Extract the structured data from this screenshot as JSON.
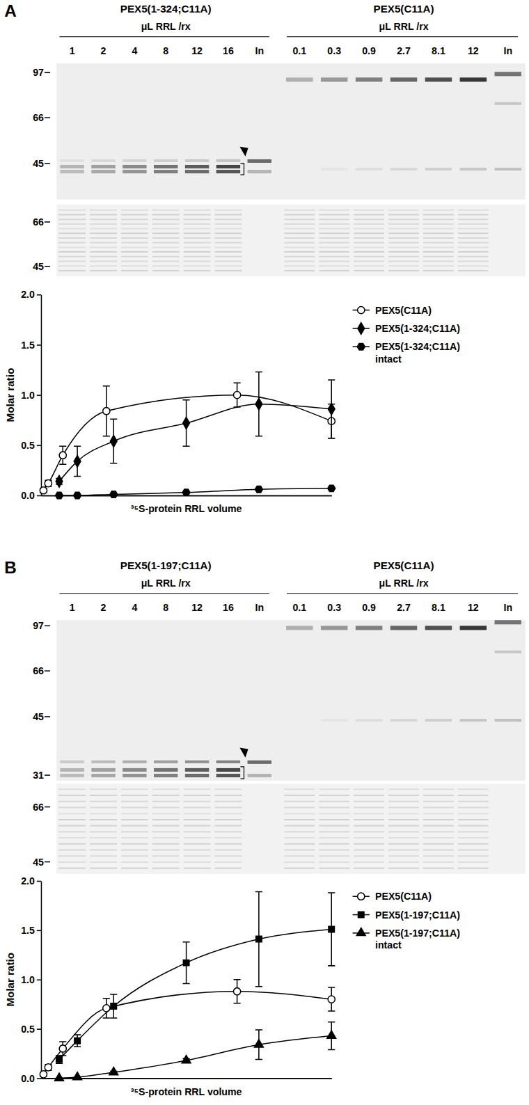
{
  "figure": {
    "panels": [
      {
        "label": "A",
        "gels": [
          {
            "title": "PEX5(1-324;C11A)",
            "subtitle": "μL RRL /rx",
            "lanes": [
              "1",
              "2",
              "4",
              "8",
              "12",
              "16",
              "In"
            ]
          },
          {
            "title": "PEX5(C11A)",
            "subtitle": "μL RRL /rx",
            "lanes": [
              "0.1",
              "0.3",
              "0.9",
              "2.7",
              "8.1",
              "12",
              "In"
            ]
          }
        ],
        "markers": [
          97,
          66,
          45
        ],
        "stain_markers": [
          66,
          45
        ]
      },
      {
        "label": "B",
        "gels": [
          {
            "title": "PEX5(1-197;C11A)",
            "subtitle": "μL RRL /rx",
            "lanes": [
              "1",
              "2",
              "4",
              "8",
              "12",
              "16",
              "In"
            ]
          },
          {
            "title": "PEX5(C11A)",
            "subtitle": "μL RRL /rx",
            "lanes": [
              "0.1",
              "0.3",
              "0.9",
              "2.7",
              "8.1",
              "12",
              "In"
            ]
          }
        ],
        "markers": [
          97,
          66,
          45,
          31
        ],
        "stain_markers": [
          66,
          45
        ]
      }
    ]
  },
  "chart_data": [
    {
      "type": "line",
      "x_label": "³⁵S-protein RRL volume",
      "y_label": "Molar ratio",
      "xlim": [
        0,
        16
      ],
      "x2lim": [
        0,
        12
      ],
      "ylim": [
        0,
        2
      ],
      "yticks": [
        {
          "value": 0,
          "label": "0.0"
        },
        {
          "value": 0.5,
          "label": "0.5"
        },
        {
          "value": 1,
          "label": "1.0"
        },
        {
          "value": 1.5,
          "label": "1.5"
        },
        {
          "value": 2,
          "label": "2.0"
        }
      ],
      "tick_labels": "y",
      "legend": "right",
      "series": [
        {
          "name": "PEX5(C11A)",
          "color": "#000000",
          "marker": "circle-open",
          "line_style": "solid",
          "axis": "x2",
          "x": [
            0.1,
            0.3,
            0.9,
            2.7,
            8.1,
            12
          ],
          "values": [
            0.05,
            0.12,
            0.4,
            0.84,
            1.0,
            0.74
          ],
          "error": [
            0.02,
            0.03,
            0.09,
            0.25,
            0.12,
            0.17
          ]
        },
        {
          "name": "PEX5(1-324;C11A)",
          "color": "#000000",
          "marker": "diamond",
          "line_style": "solid",
          "x": [
            1,
            2,
            4,
            8,
            12,
            16
          ],
          "values": [
            0.14,
            0.34,
            0.54,
            0.72,
            0.91,
            0.86
          ],
          "error": [
            0.03,
            0.15,
            0.22,
            0.23,
            0.32,
            0.29
          ]
        },
        {
          "name": "PEX5(1-324;C11A) intact",
          "color": "#000000",
          "marker": "hexagon",
          "line_style": "solid",
          "x": [
            1,
            2,
            4,
            8,
            12,
            16
          ],
          "values": [
            0.0,
            0.0,
            0.01,
            0.03,
            0.06,
            0.07
          ]
        }
      ]
    },
    {
      "type": "line",
      "x_label": "³⁵S-protein RRL volume",
      "y_label": "Molar ratio",
      "xlim": [
        0,
        16
      ],
      "x2lim": [
        0,
        12
      ],
      "ylim": [
        0,
        2
      ],
      "yticks": [
        {
          "value": 0,
          "label": "0.0"
        },
        {
          "value": 0.5,
          "label": "0.5"
        },
        {
          "value": 1,
          "label": "1.0"
        },
        {
          "value": 1.5,
          "label": "1.5"
        },
        {
          "value": 2,
          "label": "2.0"
        }
      ],
      "tick_labels": "y",
      "legend": "right",
      "series": [
        {
          "name": "PEX5(C11A)",
          "color": "#000000",
          "marker": "circle-open",
          "line_style": "solid",
          "axis": "x2",
          "x": [
            0.1,
            0.3,
            0.9,
            2.7,
            8.1,
            12
          ],
          "values": [
            0.04,
            0.11,
            0.3,
            0.71,
            0.88,
            0.8
          ],
          "error": [
            0.02,
            0.03,
            0.07,
            0.1,
            0.12,
            0.12
          ]
        },
        {
          "name": "PEX5(1-197;C11A)",
          "color": "#000000",
          "marker": "square",
          "line_style": "solid",
          "x": [
            1,
            2,
            4,
            8,
            12,
            16
          ],
          "values": [
            0.19,
            0.38,
            0.73,
            1.17,
            1.41,
            1.51
          ],
          "error": [
            0.04,
            0.06,
            0.12,
            0.21,
            0.48,
            0.37
          ]
        },
        {
          "name": "PEX5(1-197;C11A) intact",
          "color": "#000000",
          "marker": "triangle",
          "line_style": "solid",
          "x": [
            1,
            2,
            4,
            8,
            12,
            16
          ],
          "values": [
            0.0,
            0.01,
            0.06,
            0.18,
            0.34,
            0.43
          ],
          "error": [
            0,
            0,
            0.01,
            0.02,
            0.15,
            0.14
          ]
        }
      ]
    }
  ]
}
